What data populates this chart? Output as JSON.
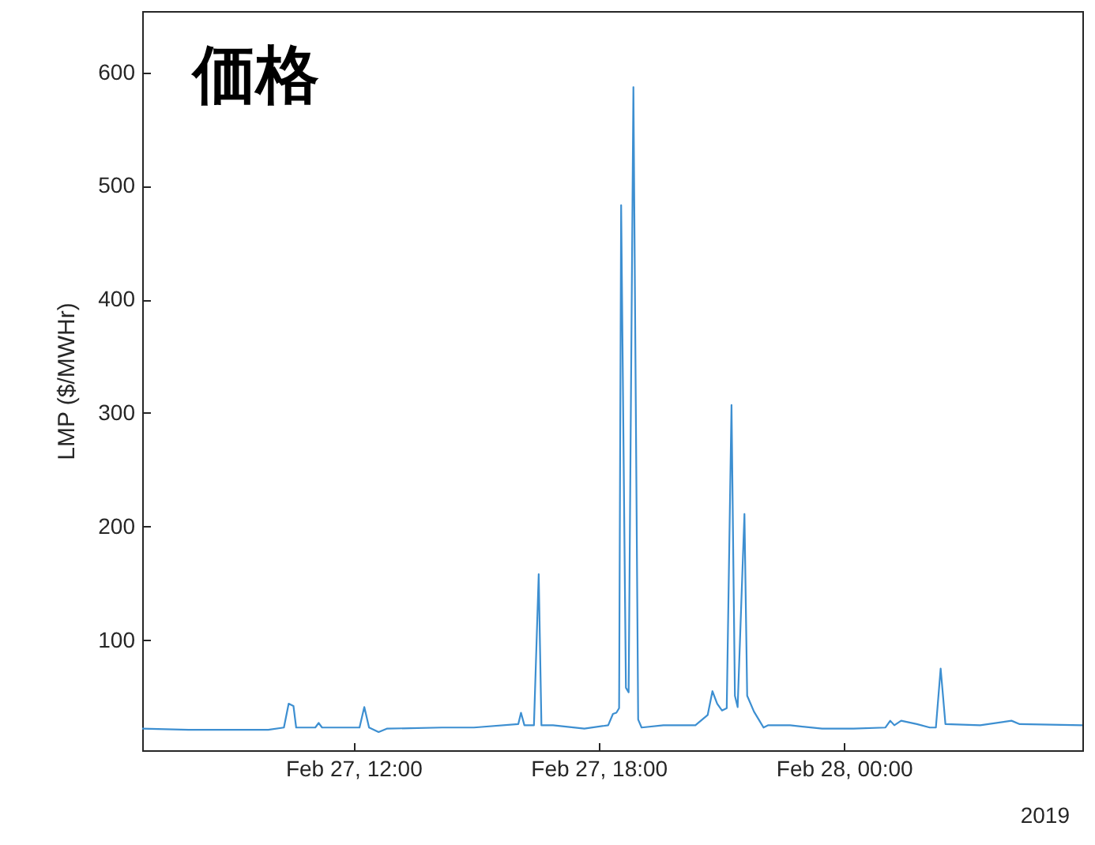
{
  "chart_data": {
    "type": "line",
    "title": "価格",
    "ylabel": "LMP ($/MWHr)",
    "annotations": [
      "2019"
    ],
    "x": [
      "2019-02-27T06:50",
      "2019-02-27T07:58",
      "2019-02-27T09:55",
      "2019-02-27T10:18",
      "2019-02-27T10:25",
      "2019-02-27T10:32",
      "2019-02-27T10:36",
      "2019-02-27T11:04",
      "2019-02-27T11:09",
      "2019-02-27T11:14",
      "2019-02-27T12:09",
      "2019-02-27T12:16",
      "2019-02-27T12:23",
      "2019-02-27T12:37",
      "2019-02-27T12:49",
      "2019-02-27T14:10",
      "2019-02-27T14:57",
      "2019-02-27T16:02",
      "2019-02-27T16:06",
      "2019-02-27T16:11",
      "2019-02-27T16:25",
      "2019-02-27T16:32",
      "2019-02-27T16:36",
      "2019-02-27T16:53",
      "2019-02-27T17:39",
      "2019-02-27T18:14",
      "2019-02-27T18:21",
      "2019-02-27T18:26",
      "2019-02-27T18:30",
      "2019-02-27T18:33",
      "2019-02-27T18:40",
      "2019-02-27T18:44",
      "2019-02-27T18:51",
      "2019-02-27T18:58",
      "2019-02-27T19:03",
      "2019-02-27T19:35",
      "2019-02-27T20:22",
      "2019-02-27T20:40",
      "2019-02-27T20:47",
      "2019-02-27T20:54",
      "2019-02-27T21:01",
      "2019-02-27T21:08",
      "2019-02-27T21:15",
      "2019-02-27T21:20",
      "2019-02-27T21:24",
      "2019-02-27T21:34",
      "2019-02-27T21:38",
      "2019-02-27T21:48",
      "2019-02-27T21:55",
      "2019-02-27T22:02",
      "2019-02-27T22:09",
      "2019-02-27T22:41",
      "2019-02-27T23:28",
      "2019-02-28T00:14",
      "2019-02-28T01:01",
      "2019-02-28T01:08",
      "2019-02-28T01:14",
      "2019-02-28T01:24",
      "2019-02-28T01:47",
      "2019-02-28T02:06",
      "2019-02-28T02:15",
      "2019-02-28T02:22",
      "2019-02-28T02:29",
      "2019-02-28T03:20",
      "2019-02-28T04:06",
      "2019-02-28T04:18",
      "2019-02-28T05:50"
    ],
    "series": [
      {
        "color": "#3d8fd1",
        "values": [
          22,
          21,
          21,
          23,
          44,
          42,
          23,
          23,
          27,
          23,
          23,
          41,
          23,
          19,
          22,
          23,
          23,
          26,
          36,
          25,
          25,
          158,
          25,
          25,
          22,
          25,
          35,
          36,
          40,
          483,
          58,
          54,
          587,
          30,
          23,
          25,
          25,
          34,
          55,
          44,
          38,
          40,
          307,
          51,
          41,
          211,
          51,
          37,
          30,
          23,
          25,
          25,
          22,
          22,
          23,
          29,
          25,
          29,
          26,
          23,
          23,
          75,
          26,
          25,
          29,
          26,
          25
        ]
      }
    ],
    "xlim": [
      "2019-02-27T06:50",
      "2019-02-28T05:50"
    ],
    "xticks": [
      {
        "value": "2019-02-27T12:00",
        "label": "Feb 27, 12:00"
      },
      {
        "value": "2019-02-27T18:00",
        "label": "Feb 27, 18:00"
      },
      {
        "value": "2019-02-28T00:00",
        "label": "Feb 28, 00:00"
      }
    ],
    "ylim": [
      3,
      654
    ],
    "yticks": [
      100,
      200,
      300,
      400,
      500,
      600
    ],
    "grid": false,
    "marker": "none",
    "line_style": "solid"
  }
}
